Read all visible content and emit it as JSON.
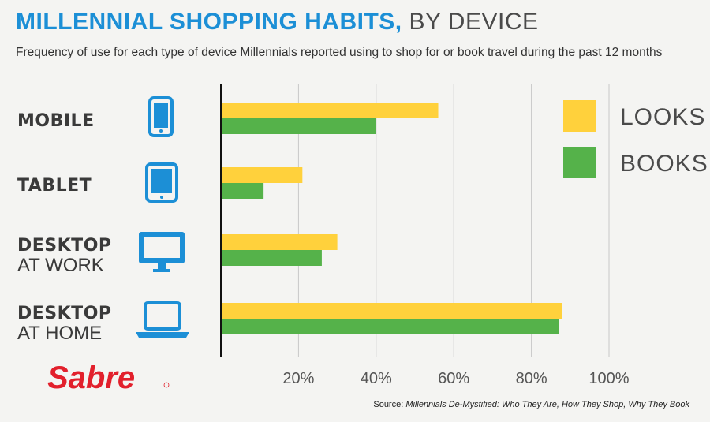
{
  "header": {
    "title_main": "MILLENNIAL SHOPPING HABITS,",
    "title_sub": "BY DEVICE",
    "subtitle": "Frequency of use for each type of device Millennials reported using to shop for or book travel during the past 12 months"
  },
  "footer": {
    "source_prefix": "Source: ",
    "source_title": "Millennials De-Mystified: Who They Are, How They Shop, Why They Book",
    "logo_text": "Sabre"
  },
  "colors": {
    "looks": "#ffd13c",
    "books": "#55b24a",
    "accent": "#1c8fd6",
    "logo": "#e2202c"
  },
  "chart_data": {
    "type": "bar",
    "orientation": "horizontal",
    "categories": [
      {
        "line1": "MOBILE",
        "line2": "",
        "icon": "smartphone-icon"
      },
      {
        "line1": "TABLET",
        "line2": "",
        "icon": "tablet-icon"
      },
      {
        "line1": "DESKTOP",
        "line2": "AT WORK",
        "icon": "desktop-monitor-icon"
      },
      {
        "line1": "DESKTOP",
        "line2": "AT HOME",
        "icon": "laptop-icon"
      }
    ],
    "series": [
      {
        "name": "LOOKS",
        "values": [
          56,
          21,
          30,
          88
        ]
      },
      {
        "name": "BOOKS",
        "values": [
          40,
          11,
          26,
          87
        ]
      }
    ],
    "x_ticks": [
      "20%",
      "40%",
      "60%",
      "80%",
      "100%"
    ],
    "xlim": [
      0,
      100
    ],
    "legend_position": "top-right",
    "grid": true
  }
}
